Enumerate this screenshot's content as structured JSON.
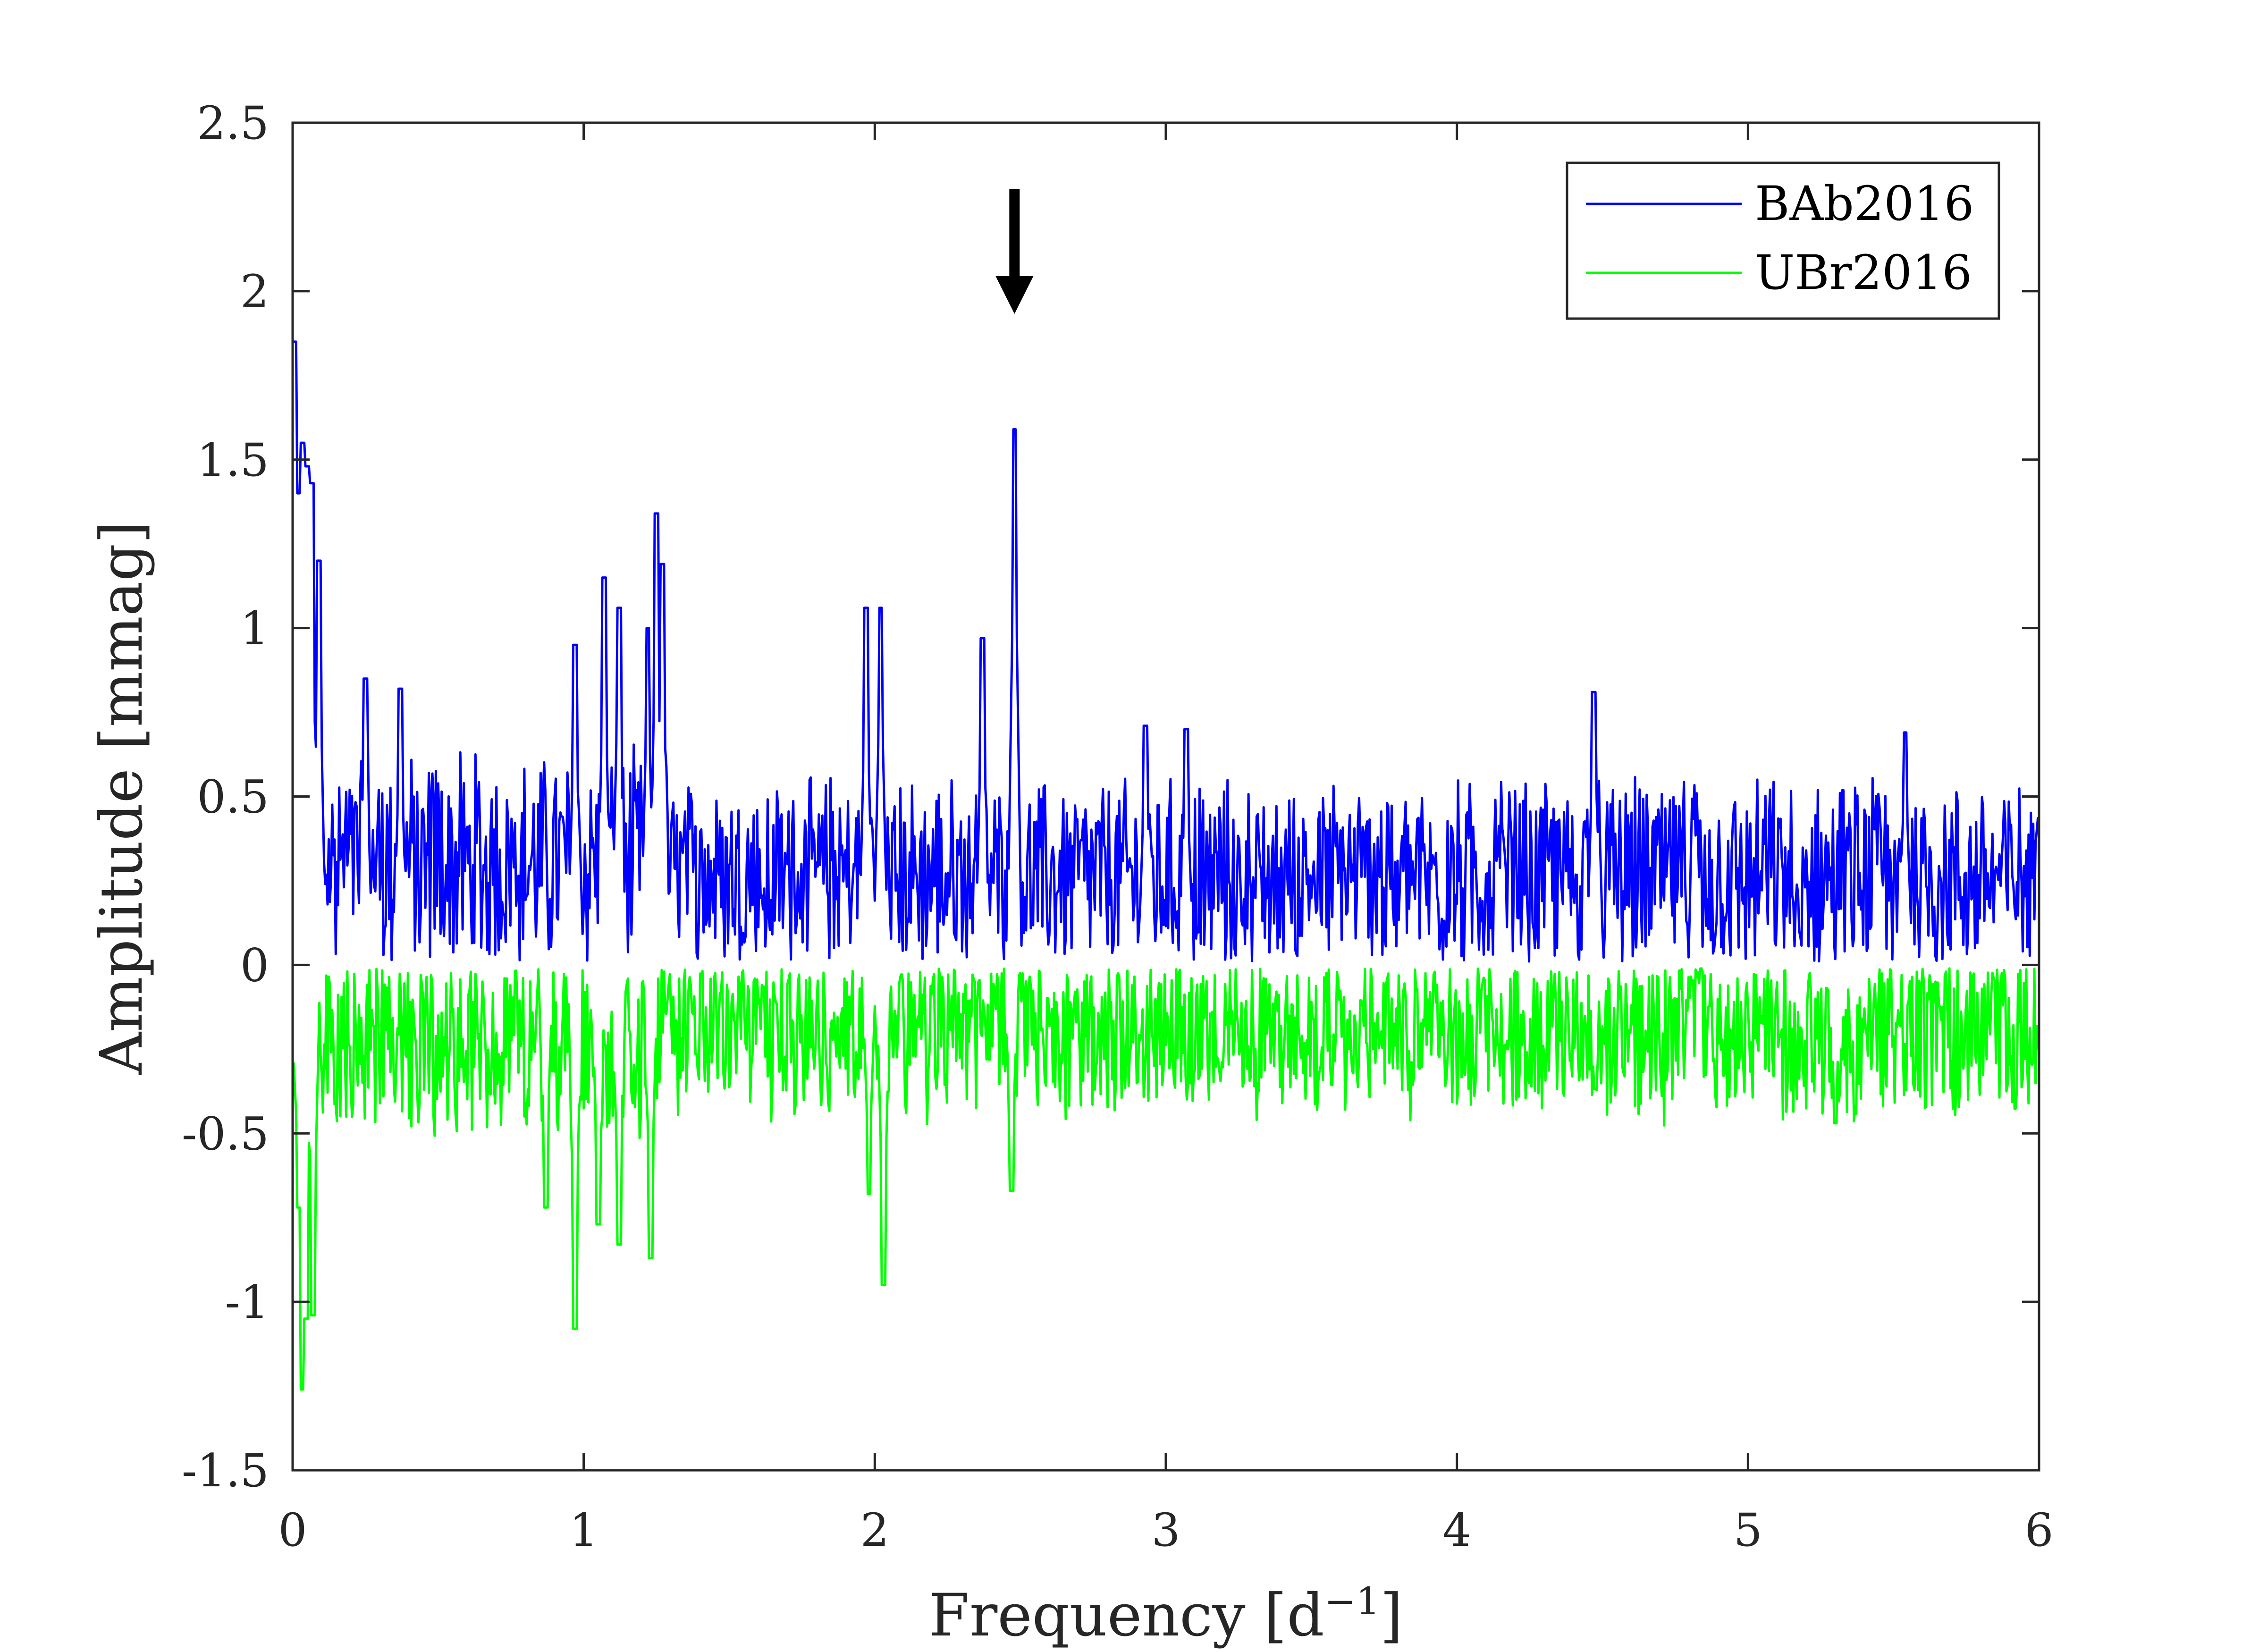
{
  "chart_data": {
    "type": "line",
    "xlabel": "Frequency [d",
    "xlabel_sup": "−1",
    "xlabel_end": "]",
    "ylabel": "Amplitude [mmag]",
    "xlim": [
      0,
      6
    ],
    "ylim": [
      -1.5,
      2.5
    ],
    "xticks": [
      0,
      1,
      2,
      3,
      4,
      5,
      6
    ],
    "xtick_labels": [
      "0",
      "1",
      "2",
      "3",
      "4",
      "5",
      "6"
    ],
    "yticks": [
      -1.5,
      -1,
      -0.5,
      0,
      0.5,
      1,
      1.5,
      2,
      2.5
    ],
    "ytick_labels": [
      "-1.5",
      "-1",
      "-0.5",
      "0",
      "0.5",
      "1",
      "1.5",
      "2",
      "2.5"
    ],
    "grid": false,
    "legend": "top-right",
    "arrow_annotation_x": 2.48,
    "series": [
      {
        "name": "BAb2016",
        "color": "#0000ff",
        "features": [
          [
            0.005,
            1.85
          ],
          [
            0.02,
            1.4
          ],
          [
            0.035,
            1.55
          ],
          [
            0.05,
            1.48
          ],
          [
            0.065,
            1.43
          ],
          [
            0.09,
            1.2
          ],
          [
            0.25,
            0.85
          ],
          [
            0.37,
            0.82
          ],
          [
            0.97,
            0.95
          ],
          [
            1.07,
            1.15
          ],
          [
            1.12,
            1.06
          ],
          [
            1.22,
            1.0
          ],
          [
            1.25,
            1.34
          ],
          [
            1.27,
            1.19
          ],
          [
            1.97,
            1.06
          ],
          [
            2.02,
            1.06
          ],
          [
            2.37,
            0.97
          ],
          [
            2.48,
            1.59
          ],
          [
            2.93,
            0.71
          ],
          [
            3.07,
            0.7
          ],
          [
            4.47,
            0.81
          ],
          [
            5.54,
            0.69
          ]
        ],
        "baseline": 0.26,
        "spread": 0.32,
        "note_values": "dense noise spectrum between 0 and ~0.6 mmag with listed peaks"
      },
      {
        "name": "UBr2016",
        "color": "#00ff00",
        "features": [
          [
            0.02,
            -0.72
          ],
          [
            0.035,
            -1.26
          ],
          [
            0.045,
            -1.05
          ],
          [
            0.07,
            -1.04
          ],
          [
            0.87,
            -0.72
          ],
          [
            0.97,
            -1.08
          ],
          [
            1.05,
            -0.77
          ],
          [
            1.12,
            -0.83
          ],
          [
            1.23,
            -0.87
          ],
          [
            1.98,
            -0.68
          ],
          [
            2.03,
            -0.95
          ],
          [
            2.47,
            -0.67
          ],
          [
            5.3,
            -0.47
          ]
        ],
        "baseline": -0.2,
        "spread": 0.28,
        "note_values": "dense noise spectrum between ~-0.5 and 0 mmag with listed dips"
      }
    ]
  }
}
